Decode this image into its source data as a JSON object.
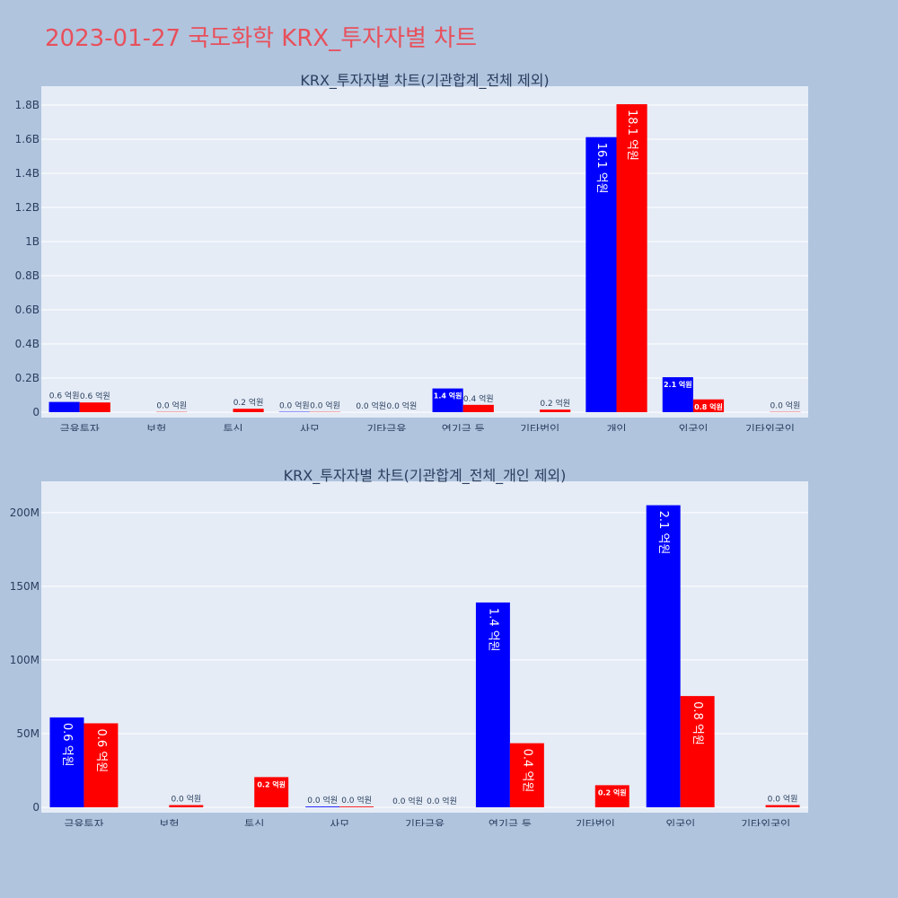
{
  "page": {
    "title": "2023-01-27 국도화학 KRX_투자자별 차트",
    "background": "#b0c4de",
    "title_color": "#e8505b"
  },
  "chart_data": [
    {
      "type": "bar",
      "title": "KRX_투자자별 차트(기관합계_전체 제외)",
      "categories": [
        "금융투자",
        "보험",
        "투신",
        "사모",
        "기타금융",
        "연기금 등",
        "기타법인",
        "개인",
        "외국인",
        "기타외국인"
      ],
      "series": [
        {
          "color": "#0000ff",
          "values": [
            60000000,
            0,
            0,
            2000000,
            0,
            139000000,
            0,
            1612000000,
            205000000,
            0
          ],
          "labels": [
            "0.6 억원",
            "",
            "",
            "0.0 억원",
            "0.0 억원",
            "1.4 억원",
            "",
            "16.1 억원",
            "2.1 억원",
            ""
          ]
        },
        {
          "color": "#ff0000",
          "values": [
            57000000,
            1500000,
            20000000,
            1500000,
            0,
            43000000,
            15000000,
            1805000000,
            75000000,
            1500000
          ],
          "labels": [
            "0.6 억원",
            "0.0 억원",
            "0.2 억원",
            "0.0 억원",
            "0.0 억원",
            "0.4 억원",
            "0.2 억원",
            "18.1 억원",
            "0.8 억원",
            "0.0 억원"
          ]
        }
      ],
      "ylim": [
        0,
        1900000000
      ],
      "yticks": [
        0,
        200000000,
        400000000,
        600000000,
        800000000,
        1000000000,
        1200000000,
        1400000000,
        1600000000,
        1800000000
      ],
      "ytick_labels": [
        "0",
        "0.2B",
        "0.4B",
        "0.6B",
        "0.8B",
        "1B",
        "1.2B",
        "1.4B",
        "1.6B",
        "1.8B"
      ],
      "grid": true,
      "plot_bg": "#e5ecf6"
    },
    {
      "type": "bar",
      "title": "KRX_투자자별 차트(기관합계_전체_개인 제외)",
      "categories": [
        "금융투자",
        "보험",
        "투신",
        "사모",
        "기타금융",
        "연기금 등",
        "기타법인",
        "외국인",
        "기타외국인"
      ],
      "series": [
        {
          "color": "#0000ff",
          "values": [
            61000000,
            0,
            0,
            500000,
            0,
            139000000,
            0,
            205000000,
            0
          ],
          "labels": [
            "0.6 억원",
            "",
            "",
            "0.0 억원",
            "0.0 억원",
            "1.4 억원",
            "",
            "2.1 억원",
            ""
          ]
        },
        {
          "color": "#ff0000",
          "values": [
            57000000,
            1500000,
            20500000,
            500000,
            0,
            43500000,
            15000000,
            75500000,
            1500000
          ],
          "labels": [
            "0.6 억원",
            "0.0 억원",
            "0.2 억원",
            "0.0 억원",
            "0.0 억원",
            "0.4 억원",
            "0.2 억원",
            "0.8 억원",
            "0.0 억원"
          ]
        }
      ],
      "ylim": [
        0,
        220000000
      ],
      "yticks": [
        0,
        50000000,
        100000000,
        150000000,
        200000000
      ],
      "ytick_labels": [
        "0",
        "50M",
        "100M",
        "150M",
        "200M"
      ],
      "grid": true,
      "plot_bg": "#e5ecf6"
    }
  ]
}
